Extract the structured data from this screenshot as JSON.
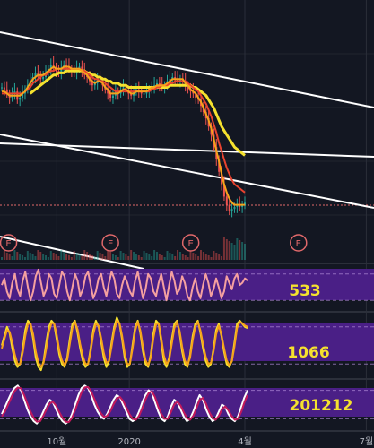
{
  "colors": {
    "background": "#131722",
    "grid": "#2a2e39",
    "separator": "#2b2f3a",
    "trendline": "#ffffff",
    "ma_short": "#f7a21b",
    "ma_mid": "#e8432f",
    "ma_long": "#f5e12e",
    "candle_up": "#26a69a",
    "candle_down": "#ef5350",
    "price_level": "#e0686a",
    "event_marker": "#e0686a",
    "oscillator_band": "#4a1f86",
    "oscillator_level": "#b08ad8",
    "value_label": "#f5e12e",
    "stoch_line_1": "#f5a0a0",
    "stoch_line_2": "#f5e12e",
    "stoch_line_3": "#c2185b",
    "stoch_line_4": "#ffffff",
    "axis_text": "#b2b5be"
  },
  "x_axis": {
    "labels": [
      {
        "text": "10월",
        "index": 29
      },
      {
        "text": "2020",
        "index": 66
      },
      {
        "text": "4월",
        "index": 125
      },
      {
        "text": "7월",
        "index": 187
      }
    ]
  },
  "event_marker_label": "E",
  "event_markers_index": [
    3,
    55,
    96,
    151
  ],
  "panel_labels": {
    "oscillator_1": "533",
    "oscillator_2": "1066",
    "oscillator_3": "201212"
  },
  "chart_data": [
    {
      "type": "candlestick",
      "title": "",
      "x_index_range": [
        0,
        196
      ],
      "ylim": [
        0,
        100
      ],
      "close": [
        75,
        74,
        72,
        70,
        72,
        73,
        69,
        70,
        72,
        74,
        76,
        78,
        80,
        82,
        81,
        79,
        80,
        82,
        84,
        86,
        85,
        83,
        82,
        84,
        86,
        85,
        84,
        83,
        82,
        84,
        85,
        83,
        81,
        80,
        78,
        76,
        77,
        79,
        78,
        76,
        74,
        72,
        70,
        71,
        73,
        72,
        74,
        75,
        73,
        72,
        71,
        73,
        74,
        73,
        72,
        72,
        73,
        74,
        75,
        76,
        77,
        76,
        75,
        76,
        78,
        79,
        80,
        79,
        78,
        79,
        78,
        76,
        74,
        73,
        72,
        70,
        69,
        66,
        63,
        60,
        56,
        52,
        46,
        40,
        34,
        28,
        22,
        18,
        15,
        16,
        17,
        18,
        17,
        18,
        19
      ],
      "ma_short": [
        73,
        73,
        72,
        71,
        71,
        71,
        71,
        71,
        72,
        73,
        75,
        77,
        79,
        80,
        81,
        81,
        81,
        82,
        83,
        84,
        85,
        84,
        84,
        84,
        85,
        85,
        85,
        84,
        84,
        84,
        84,
        83,
        82,
        81,
        79,
        78,
        77,
        78,
        78,
        77,
        75,
        74,
        72,
        72,
        72,
        72,
        73,
        74,
        74,
        73,
        72,
        72,
        73,
        73,
        73,
        73,
        73,
        74,
        75,
        75,
        76,
        76,
        76,
        76,
        77,
        78,
        79,
        79,
        79,
        79,
        79,
        77,
        76,
        74,
        73,
        72,
        70,
        68,
        65,
        62,
        59,
        55,
        50,
        44,
        39,
        33,
        28,
        24,
        21,
        19,
        18,
        18,
        18,
        18,
        18
      ],
      "ma_mid": [
        72,
        72,
        72,
        72,
        72,
        72,
        72,
        72,
        72,
        73,
        74,
        75,
        77,
        78,
        79,
        80,
        81,
        81,
        82,
        83,
        83,
        84,
        84,
        84,
        84,
        84,
        84,
        84,
        84,
        84,
        84,
        83,
        83,
        82,
        81,
        80,
        79,
        79,
        78,
        78,
        77,
        76,
        75,
        74,
        73,
        73,
        73,
        73,
        73,
        73,
        73,
        73,
        73,
        73,
        73,
        73,
        73,
        73,
        74,
        74,
        75,
        75,
        76,
        76,
        76,
        77,
        77,
        78,
        78,
        78,
        78,
        78,
        77,
        76,
        75,
        74,
        73,
        71,
        69,
        67,
        64,
        61,
        57,
        53,
        48,
        44,
        40,
        36,
        33,
        30,
        28,
        27,
        26,
        25,
        24
      ],
      "ma_long": [
        null,
        null,
        null,
        null,
        null,
        null,
        null,
        null,
        null,
        null,
        null,
        72,
        73,
        74,
        75,
        76,
        77,
        78,
        79,
        80,
        81,
        81,
        82,
        82,
        82,
        83,
        83,
        83,
        83,
        83,
        83,
        83,
        83,
        82,
        82,
        81,
        81,
        80,
        80,
        79,
        79,
        78,
        78,
        77,
        77,
        77,
        76,
        76,
        76,
        75,
        75,
        75,
        75,
        75,
        75,
        75,
        75,
        75,
        75,
        75,
        75,
        75,
        75,
        75,
        75,
        76,
        76,
        76,
        76,
        76,
        76,
        76,
        76,
        76,
        75,
        75,
        74,
        73,
        72,
        71,
        69,
        67,
        65,
        62,
        59,
        56,
        54,
        52,
        50,
        48,
        46,
        45,
        44,
        43,
        42
      ]
    },
    {
      "type": "line",
      "title": "",
      "ylim": [
        0,
        100
      ],
      "levels": [
        20,
        80
      ],
      "series": [
        {
          "values": [
            55,
            70,
            40,
            25,
            60,
            80,
            45,
            30,
            65,
            85,
            50,
            20,
            40,
            75,
            90,
            60,
            30,
            45,
            80,
            70,
            35,
            25,
            55,
            85,
            75,
            40,
            20,
            50,
            80,
            65,
            30,
            45,
            75,
            85,
            55,
            25,
            40,
            70,
            80,
            50,
            30,
            60,
            85,
            70,
            35,
            25,
            55,
            75,
            60,
            40,
            30,
            65,
            85,
            55,
            25,
            45,
            80,
            70,
            40,
            30,
            60,
            80,
            50,
            20,
            55,
            85,
            65,
            35,
            45,
            75,
            60,
            30,
            20,
            50,
            70,
            40,
            25,
            55,
            80,
            60,
            30,
            45,
            70,
            50,
            25,
            40,
            75,
            60,
            45,
            70,
            80,
            55,
            60,
            70,
            65
          ]
        }
      ]
    },
    {
      "type": "line",
      "title": "",
      "ylim": [
        0,
        100
      ],
      "levels": [
        20,
        80
      ],
      "series": [
        {
          "values": [
            50,
            65,
            80,
            70,
            45,
            25,
            15,
            20,
            45,
            75,
            90,
            85,
            60,
            30,
            15,
            10,
            25,
            55,
            80,
            90,
            85,
            60,
            35,
            20,
            15,
            30,
            60,
            85,
            90,
            70,
            45,
            25,
            15,
            20,
            45,
            75,
            90,
            80,
            55,
            30,
            15,
            25,
            55,
            80,
            95,
            85,
            60,
            30,
            15,
            20,
            50,
            80,
            90,
            70,
            40,
            20,
            15,
            35,
            70,
            90,
            85,
            55,
            25,
            15,
            30,
            60,
            85,
            90,
            70,
            40,
            20,
            15,
            35,
            65,
            85,
            90,
            70,
            45,
            25,
            15,
            20,
            45,
            75,
            85,
            65,
            40,
            20,
            15,
            25,
            55,
            85,
            90,
            85,
            80,
            78
          ]
        },
        {
          "values": [
            45,
            60,
            75,
            72,
            55,
            35,
            20,
            20,
            38,
            65,
            85,
            85,
            68,
            40,
            22,
            15,
            22,
            45,
            72,
            86,
            86,
            68,
            42,
            26,
            18,
            26,
            52,
            78,
            88,
            76,
            52,
            32,
            20,
            20,
            40,
            68,
            85,
            82,
            62,
            38,
            22,
            24,
            48,
            74,
            90,
            86,
            66,
            38,
            20,
            20,
            44,
            74,
            88,
            74,
            48,
            26,
            18,
            30,
            62,
            84,
            86,
            62,
            34,
            20,
            26,
            52,
            78,
            88,
            74,
            48,
            26,
            18,
            30,
            58,
            80,
            88,
            74,
            52,
            32,
            20,
            22,
            40,
            68,
            82,
            68,
            46,
            26,
            18,
            24,
            48,
            78,
            88,
            86,
            82,
            80
          ]
        }
      ]
    },
    {
      "type": "line",
      "title": "",
      "ylim": [
        0,
        100
      ],
      "levels": [
        20,
        80
      ],
      "series": [
        {
          "values": [
            30,
            45,
            60,
            75,
            85,
            90,
            80,
            60,
            40,
            25,
            15,
            10,
            20,
            35,
            50,
            60,
            55,
            40,
            25,
            15,
            10,
            15,
            30,
            50,
            70,
            85,
            90,
            85,
            70,
            50,
            35,
            25,
            20,
            30,
            45,
            60,
            70,
            65,
            50,
            35,
            20,
            15,
            20,
            35,
            55,
            70,
            80,
            75,
            55,
            35,
            20,
            15,
            25,
            45,
            60,
            55,
            40,
            25,
            15,
            20,
            35,
            55,
            70,
            60,
            40,
            25,
            15,
            20,
            35,
            50,
            45,
            30,
            20,
            15,
            25,
            45,
            65,
            80
          ]
        },
        {
          "values": [
            25,
            35,
            50,
            65,
            78,
            86,
            84,
            70,
            52,
            35,
            22,
            14,
            15,
            26,
            40,
            52,
            56,
            48,
            34,
            22,
            14,
            13,
            22,
            38,
            58,
            76,
            86,
            87,
            78,
            62,
            45,
            32,
            24,
            26,
            36,
            50,
            62,
            66,
            58,
            44,
            30,
            20,
            18,
            26,
            42,
            60,
            74,
            78,
            66,
            46,
            30,
            20,
            20,
            34,
            50,
            56,
            48,
            34,
            22,
            18,
            26,
            42,
            60,
            64,
            52,
            34,
            22,
            18,
            26,
            40,
            46,
            38,
            26,
            18,
            20,
            34,
            54,
            70
          ]
        }
      ]
    }
  ]
}
